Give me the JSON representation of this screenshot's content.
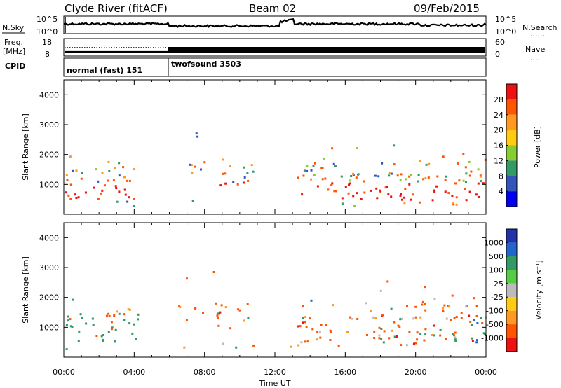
{
  "header": {
    "station": "Clyde River (fitACF)",
    "beam": "Beam 02",
    "date": "09/Feb/2015"
  },
  "strips": {
    "nsky": {
      "left_label": "N.Sky",
      "left_ticks": [
        "10^5",
        "10^0"
      ],
      "right_ticks": [
        "10^5",
        "10^0"
      ],
      "right_label": "N.Search",
      "right_legend": "......"
    },
    "freq": {
      "left_label_1": "Freq.",
      "left_label_2": "[MHz]",
      "left_ticks": [
        "18",
        "8"
      ],
      "right_ticks": [
        "60",
        "0"
      ],
      "right_label": "Nave",
      "right_legend": "...."
    },
    "cpid": {
      "label": "CPID",
      "mode_1": "normal (fast) 151",
      "mode_2": "twofsound 3503"
    }
  },
  "chart_data": [
    {
      "type": "heatmap",
      "parameter": "Power",
      "ylabel": "Slant Range [km]",
      "ylim": [
        0,
        4500
      ],
      "yticks": [
        "1000",
        "2000",
        "3000",
        "4000"
      ],
      "xlim_hours": [
        0,
        24
      ],
      "colorbar": {
        "label": "Power [dB]",
        "ticks": [
          "28",
          "24",
          "20",
          "16",
          "12",
          "8",
          "4"
        ],
        "colors": [
          "#ee1111",
          "#ff5500",
          "#ff9922",
          "#ffcc11",
          "#88cc33",
          "#339966",
          "#3355bb",
          "#0000ee"
        ]
      }
    },
    {
      "type": "heatmap",
      "parameter": "Velocity",
      "ylabel": "Slant Range [km]",
      "ylim": [
        0,
        4500
      ],
      "yticks": [
        "1000",
        "2000",
        "3000",
        "4000"
      ],
      "xlim_hours": [
        0,
        24
      ],
      "colorbar": {
        "label": "Velocity [m s⁻¹]",
        "ticks": [
          "1000",
          "500",
          "100",
          "25",
          "-25",
          "-100",
          "-500",
          "-1000"
        ],
        "colors": [
          "#2233aa",
          "#2266cc",
          "#339966",
          "#55cc44",
          "#bbbbbb",
          "#ffcc11",
          "#ff9922",
          "#ff5500",
          "#ee1111"
        ]
      }
    }
  ],
  "xaxis": {
    "ticks": [
      "00:00",
      "04:00",
      "08:00",
      "12:00",
      "16:00",
      "20:00",
      "00:00"
    ],
    "label": "Time UT"
  }
}
